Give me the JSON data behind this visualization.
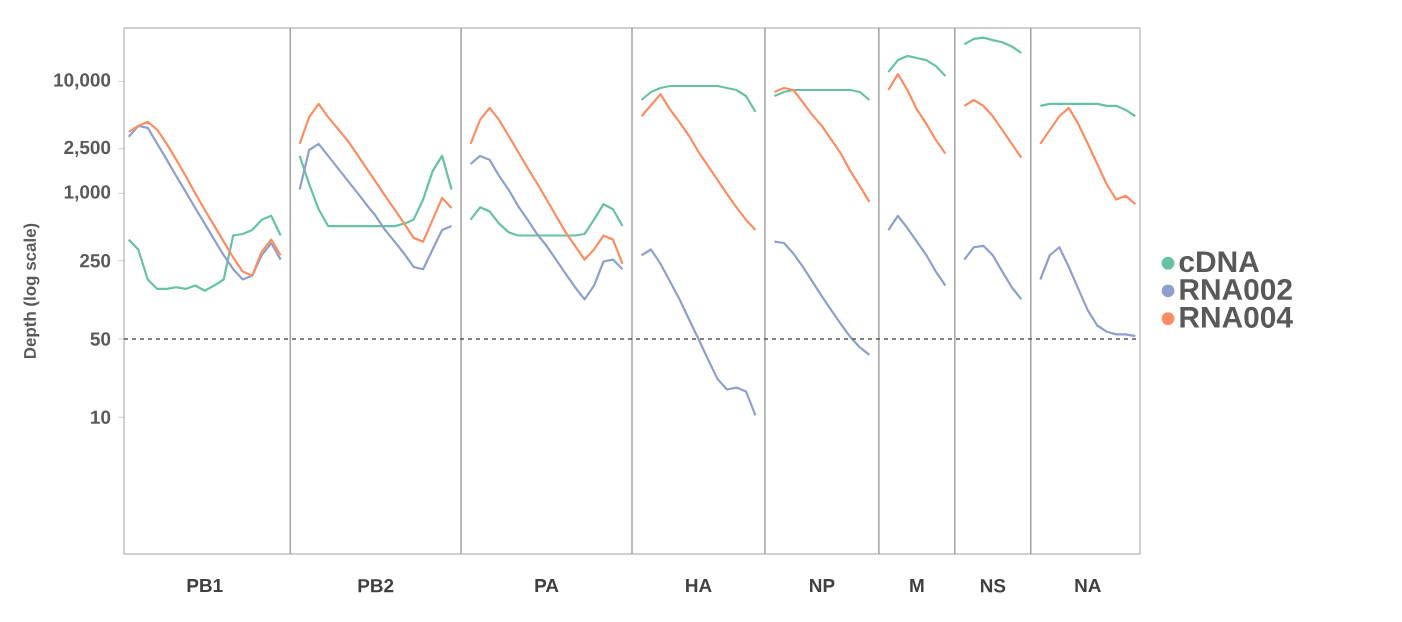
{
  "chart_data": {
    "type": "line",
    "ylabel": "Depth (log scale)",
    "log": true,
    "ylim": [
      0.6,
      30000
    ],
    "legend": "right",
    "yticks": [
      {
        "value": 10000,
        "label": "10,000"
      },
      {
        "value": 2500,
        "label": "2,500"
      },
      {
        "value": 1000,
        "label": "1,000"
      },
      250,
      50,
      10
    ],
    "ref_lines": [
      {
        "axis": "y",
        "value": 50,
        "line_style": "dashed",
        "color": "#555555"
      }
    ],
    "categories": [
      null,
      null,
      null,
      null,
      null,
      null,
      null,
      null,
      "PB1",
      null,
      null,
      null,
      null,
      null,
      null,
      null,
      null,
      null,
      null,
      null,
      null,
      null,
      null,
      null,
      null,
      null,
      "PB2",
      null,
      null,
      null,
      null,
      null,
      null,
      null,
      null,
      null,
      null,
      null,
      null,
      null,
      null,
      null,
      null,
      null,
      "PA",
      null,
      null,
      null,
      null,
      null,
      null,
      null,
      null,
      null,
      null,
      null,
      null,
      null,
      null,
      null,
      "HA",
      null,
      null,
      null,
      null,
      null,
      null,
      null,
      null,
      null,
      null,
      null,
      null,
      "NP",
      null,
      null,
      null,
      null,
      null,
      null,
      null,
      null,
      null,
      "M",
      null,
      null,
      null,
      null,
      null,
      null,
      null,
      "NS",
      null,
      null,
      null,
      null,
      null,
      null,
      null,
      null,
      null,
      "NA",
      null,
      null,
      null,
      null,
      null
    ],
    "series": [
      {
        "name": "cDNA",
        "color": "#66c2a5",
        "values": [
          386,
          315,
          170,
          140,
          140,
          145,
          140,
          150,
          135,
          150,
          170,
          420,
          433,
          470,
          582,
          630,
          420,
          null,
          2160,
          1210,
          720,
          510,
          510,
          510,
          510,
          510,
          510,
          510,
          510,
          536,
          582,
          880,
          1580,
          2160,
          1080,
          null,
          582,
          750,
          690,
          536,
          450,
          420,
          420,
          420,
          420,
          420,
          420,
          420,
          433,
          582,
          800,
          720,
          510,
          null,
          6820,
          8040,
          8730,
          9100,
          9100,
          9100,
          9100,
          9100,
          9100,
          8730,
          8380,
          7400,
          5340,
          null,
          7400,
          8040,
          8380,
          8380,
          8380,
          8380,
          8380,
          8380,
          8380,
          8040,
          6820,
          null,
          12100,
          15500,
          16900,
          16200,
          15500,
          13700,
          11200,
          null,
          21500,
          24000,
          24600,
          23400,
          22400,
          20500,
          18000,
          null,
          6050,
          6300,
          6300,
          6300,
          6300,
          6300,
          6300,
          6050,
          6050,
          5560,
          4880
        ]
      },
      {
        "name": "RNA002",
        "color": "#8da0cb",
        "values": [
          3200,
          4000,
          3850,
          2770,
          2000,
          1430,
          1030,
          740,
          536,
          386,
          280,
          210,
          170,
          184,
          280,
          360,
          256,
          null,
          1080,
          2440,
          2770,
          2160,
          1690,
          1320,
          1030,
          800,
          630,
          470,
          370,
          290,
          220,
          210,
          315,
          470,
          510,
          null,
          1830,
          2160,
          2000,
          1430,
          1080,
          770,
          582,
          433,
          340,
          256,
          192,
          145,
          113,
          150,
          246,
          256,
          210,
          null,
          280,
          315,
          235,
          163,
          113,
          75,
          50,
          33,
          22,
          17.7,
          18.4,
          17,
          10.4,
          null,
          370,
          360,
          290,
          220,
          163,
          120,
          90,
          68,
          52,
          42,
          36,
          null,
          470,
          630,
          490,
          370,
          280,
          200,
          150,
          null,
          256,
          330,
          340,
          280,
          200,
          145,
          113,
          null,
          170,
          280,
          330,
          220,
          140,
          90,
          66,
          58,
          55,
          55,
          53
        ]
      },
      {
        "name": "RNA004",
        "color": "#fc8d62",
        "values": [
          3540,
          4000,
          4350,
          3700,
          2770,
          2000,
          1430,
          1000,
          713,
          515,
          370,
          267,
          200,
          184,
          300,
          386,
          280,
          null,
          2770,
          4800,
          6300,
          4800,
          3800,
          3000,
          2260,
          1690,
          1270,
          950,
          720,
          540,
          400,
          370,
          580,
          910,
          740,
          null,
          2770,
          4530,
          5800,
          4530,
          3270,
          2350,
          1690,
          1230,
          880,
          630,
          450,
          340,
          256,
          315,
          420,
          386,
          235,
          null,
          4880,
          6120,
          7700,
          5620,
          4320,
          3270,
          2350,
          1760,
          1320,
          990,
          750,
          582,
          470,
          null,
          8040,
          8730,
          8380,
          6500,
          5000,
          4000,
          3000,
          2260,
          1580,
          1160,
          840,
          null,
          8380,
          11600,
          8380,
          5620,
          4170,
          3000,
          2260,
          null,
          6050,
          6820,
          6050,
          4880,
          3680,
          2770,
          2080,
          null,
          2770,
          3680,
          4880,
          5800,
          4170,
          2770,
          1830,
          1200,
          880,
          950,
          800
        ]
      }
    ]
  }
}
